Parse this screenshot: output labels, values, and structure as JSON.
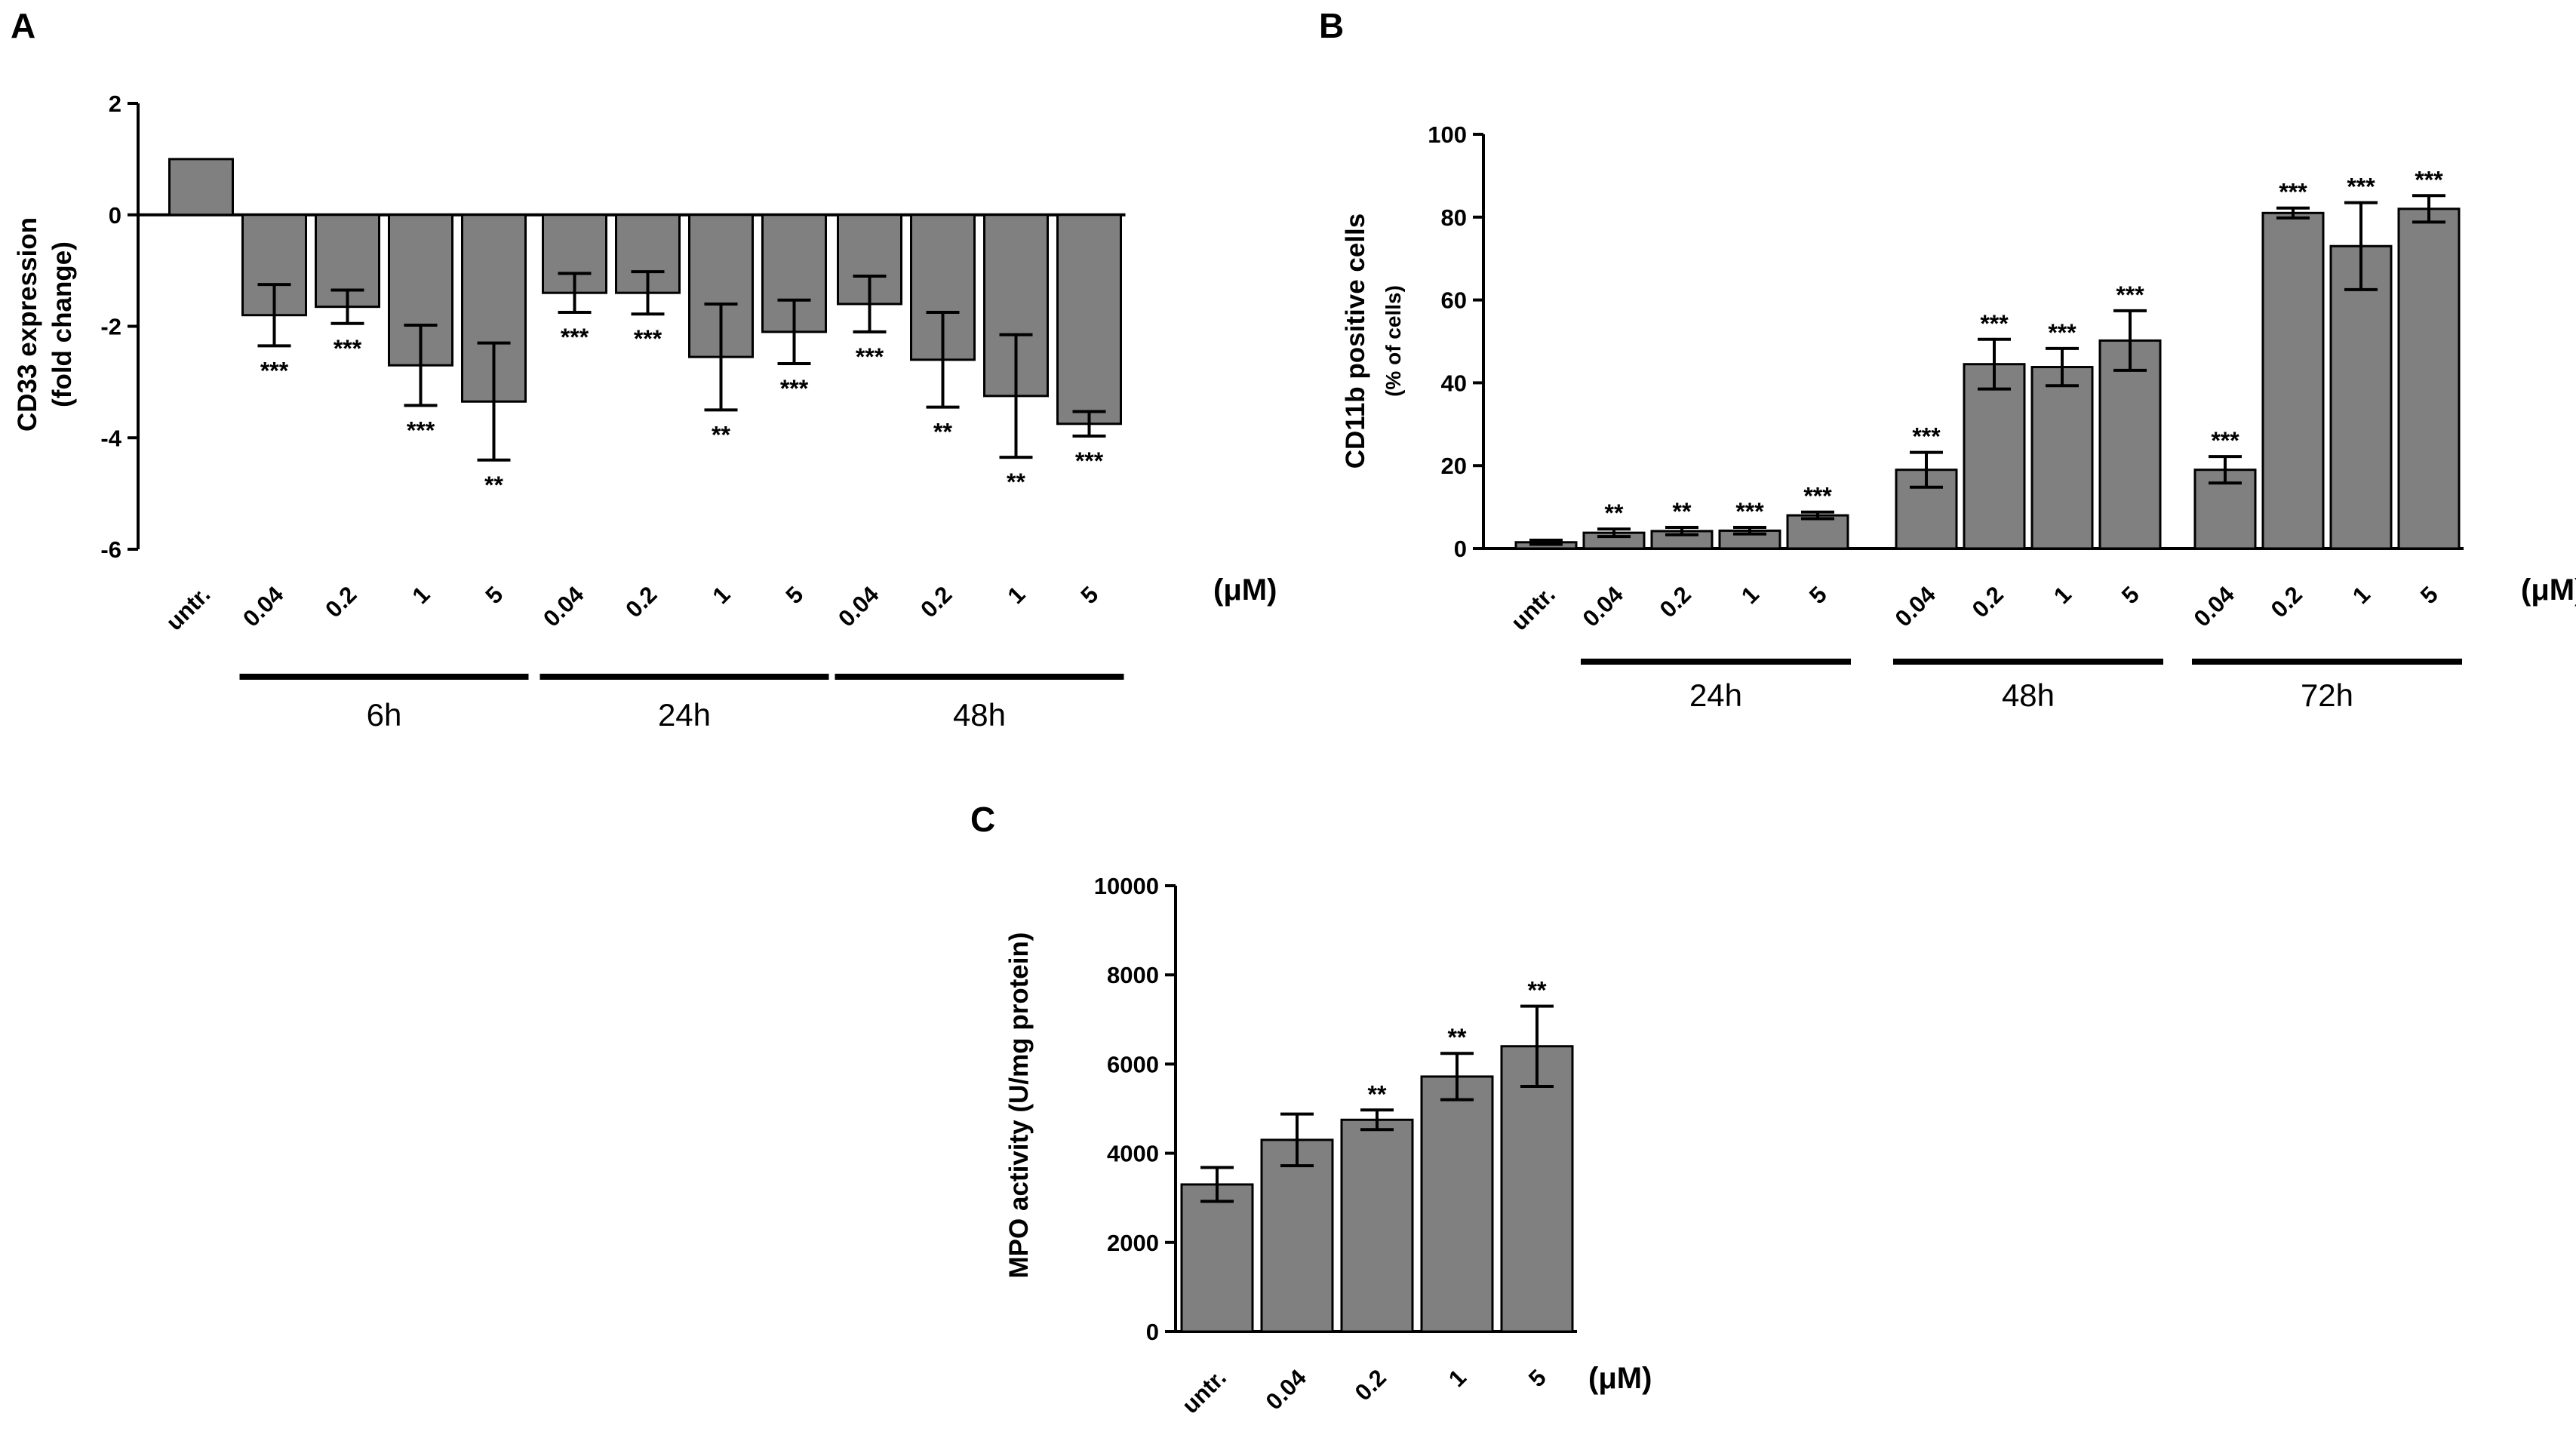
{
  "chart_data": [
    {
      "panel": "A",
      "type": "bar",
      "ylabel": "CD33 expression",
      "ylabel2": "(fold change)",
      "ylim": [
        -6,
        2
      ],
      "yticks": [
        2,
        0,
        -2,
        -4,
        -6
      ],
      "unit_label": "(μM)",
      "bar_color": "#808080",
      "bars": [
        {
          "label": "untr.",
          "value": 1.0,
          "err": null,
          "sig": ""
        },
        {
          "label": "0.04",
          "value": -1.8,
          "err": 0.55,
          "sig": "***"
        },
        {
          "label": "0.2",
          "value": -1.65,
          "err": 0.3,
          "sig": "***"
        },
        {
          "label": "1",
          "value": -2.7,
          "err": 0.72,
          "sig": "***"
        },
        {
          "label": "5",
          "value": -3.35,
          "err": 1.05,
          "sig": "**"
        },
        {
          "label": "0.04",
          "value": -1.4,
          "err": 0.35,
          "sig": "***"
        },
        {
          "label": "0.2",
          "value": -1.4,
          "err": 0.38,
          "sig": "***"
        },
        {
          "label": "1",
          "value": -2.55,
          "err": 0.95,
          "sig": "**"
        },
        {
          "label": "5",
          "value": -2.1,
          "err": 0.57,
          "sig": "***"
        },
        {
          "label": "0.04",
          "value": -1.6,
          "err": 0.5,
          "sig": "***"
        },
        {
          "label": "0.2",
          "value": -2.6,
          "err": 0.85,
          "sig": "**"
        },
        {
          "label": "1",
          "value": -3.25,
          "err": 1.1,
          "sig": "**"
        },
        {
          "label": "5",
          "value": -3.75,
          "err": 0.22,
          "sig": "***"
        }
      ],
      "groups": [
        {
          "label": "6h",
          "start": 1,
          "end": 4
        },
        {
          "label": "24h",
          "start": 5,
          "end": 8
        },
        {
          "label": "48h",
          "start": 9,
          "end": 12
        }
      ]
    },
    {
      "panel": "B",
      "type": "bar",
      "ylabel": "CD11b positive cells",
      "ylabel2": "(% of cells)",
      "ylim": [
        0,
        100
      ],
      "yticks": [
        100,
        80,
        60,
        40,
        20,
        0
      ],
      "unit_label": "(μM)",
      "bar_color": "#808080",
      "bars": [
        {
          "label": "untr.",
          "value": 1.5,
          "err": 0.5,
          "sig": ""
        },
        {
          "label": "0.04",
          "value": 3.8,
          "err": 0.9,
          "sig": "**"
        },
        {
          "label": "0.2",
          "value": 4.2,
          "err": 0.9,
          "sig": "**"
        },
        {
          "label": "1",
          "value": 4.3,
          "err": 0.8,
          "sig": "***"
        },
        {
          "label": "5",
          "value": 8.0,
          "err": 0.8,
          "sig": "***"
        },
        {
          "label": "0.04",
          "value": 19.0,
          "err": 4.2,
          "sig": "***"
        },
        {
          "label": "0.2",
          "value": 44.5,
          "err": 6.0,
          "sig": "***"
        },
        {
          "label": "1",
          "value": 43.8,
          "err": 4.5,
          "sig": "***"
        },
        {
          "label": "5",
          "value": 50.2,
          "err": 7.2,
          "sig": "***"
        },
        {
          "label": "0.04",
          "value": 19.0,
          "err": 3.2,
          "sig": "***"
        },
        {
          "label": "0.2",
          "value": 81.0,
          "err": 1.2,
          "sig": "***"
        },
        {
          "label": "1",
          "value": 73.0,
          "err": 10.5,
          "sig": "***"
        },
        {
          "label": "5",
          "value": 82.0,
          "err": 3.2,
          "sig": "***"
        }
      ],
      "groups": [
        {
          "label": "24h",
          "start": 1,
          "end": 4
        },
        {
          "label": "48h",
          "start": 5,
          "end": 8
        },
        {
          "label": "72h",
          "start": 9,
          "end": 12
        }
      ]
    },
    {
      "panel": "C",
      "type": "bar",
      "ylabel": "MPO activity (U/mg protein)",
      "ylim": [
        0,
        10000
      ],
      "yticks": [
        10000,
        8000,
        6000,
        4000,
        2000,
        0
      ],
      "unit_label": "(μM)",
      "bar_color": "#808080",
      "bars": [
        {
          "label": "untr.",
          "value": 3300,
          "err": 380,
          "sig": ""
        },
        {
          "label": "0.04",
          "value": 4300,
          "err": 580,
          "sig": ""
        },
        {
          "label": "0.2",
          "value": 4750,
          "err": 220,
          "sig": "**"
        },
        {
          "label": "1",
          "value": 5720,
          "err": 520,
          "sig": "**"
        },
        {
          "label": "5",
          "value": 6400,
          "err": 900,
          "sig": "**"
        }
      ]
    }
  ]
}
